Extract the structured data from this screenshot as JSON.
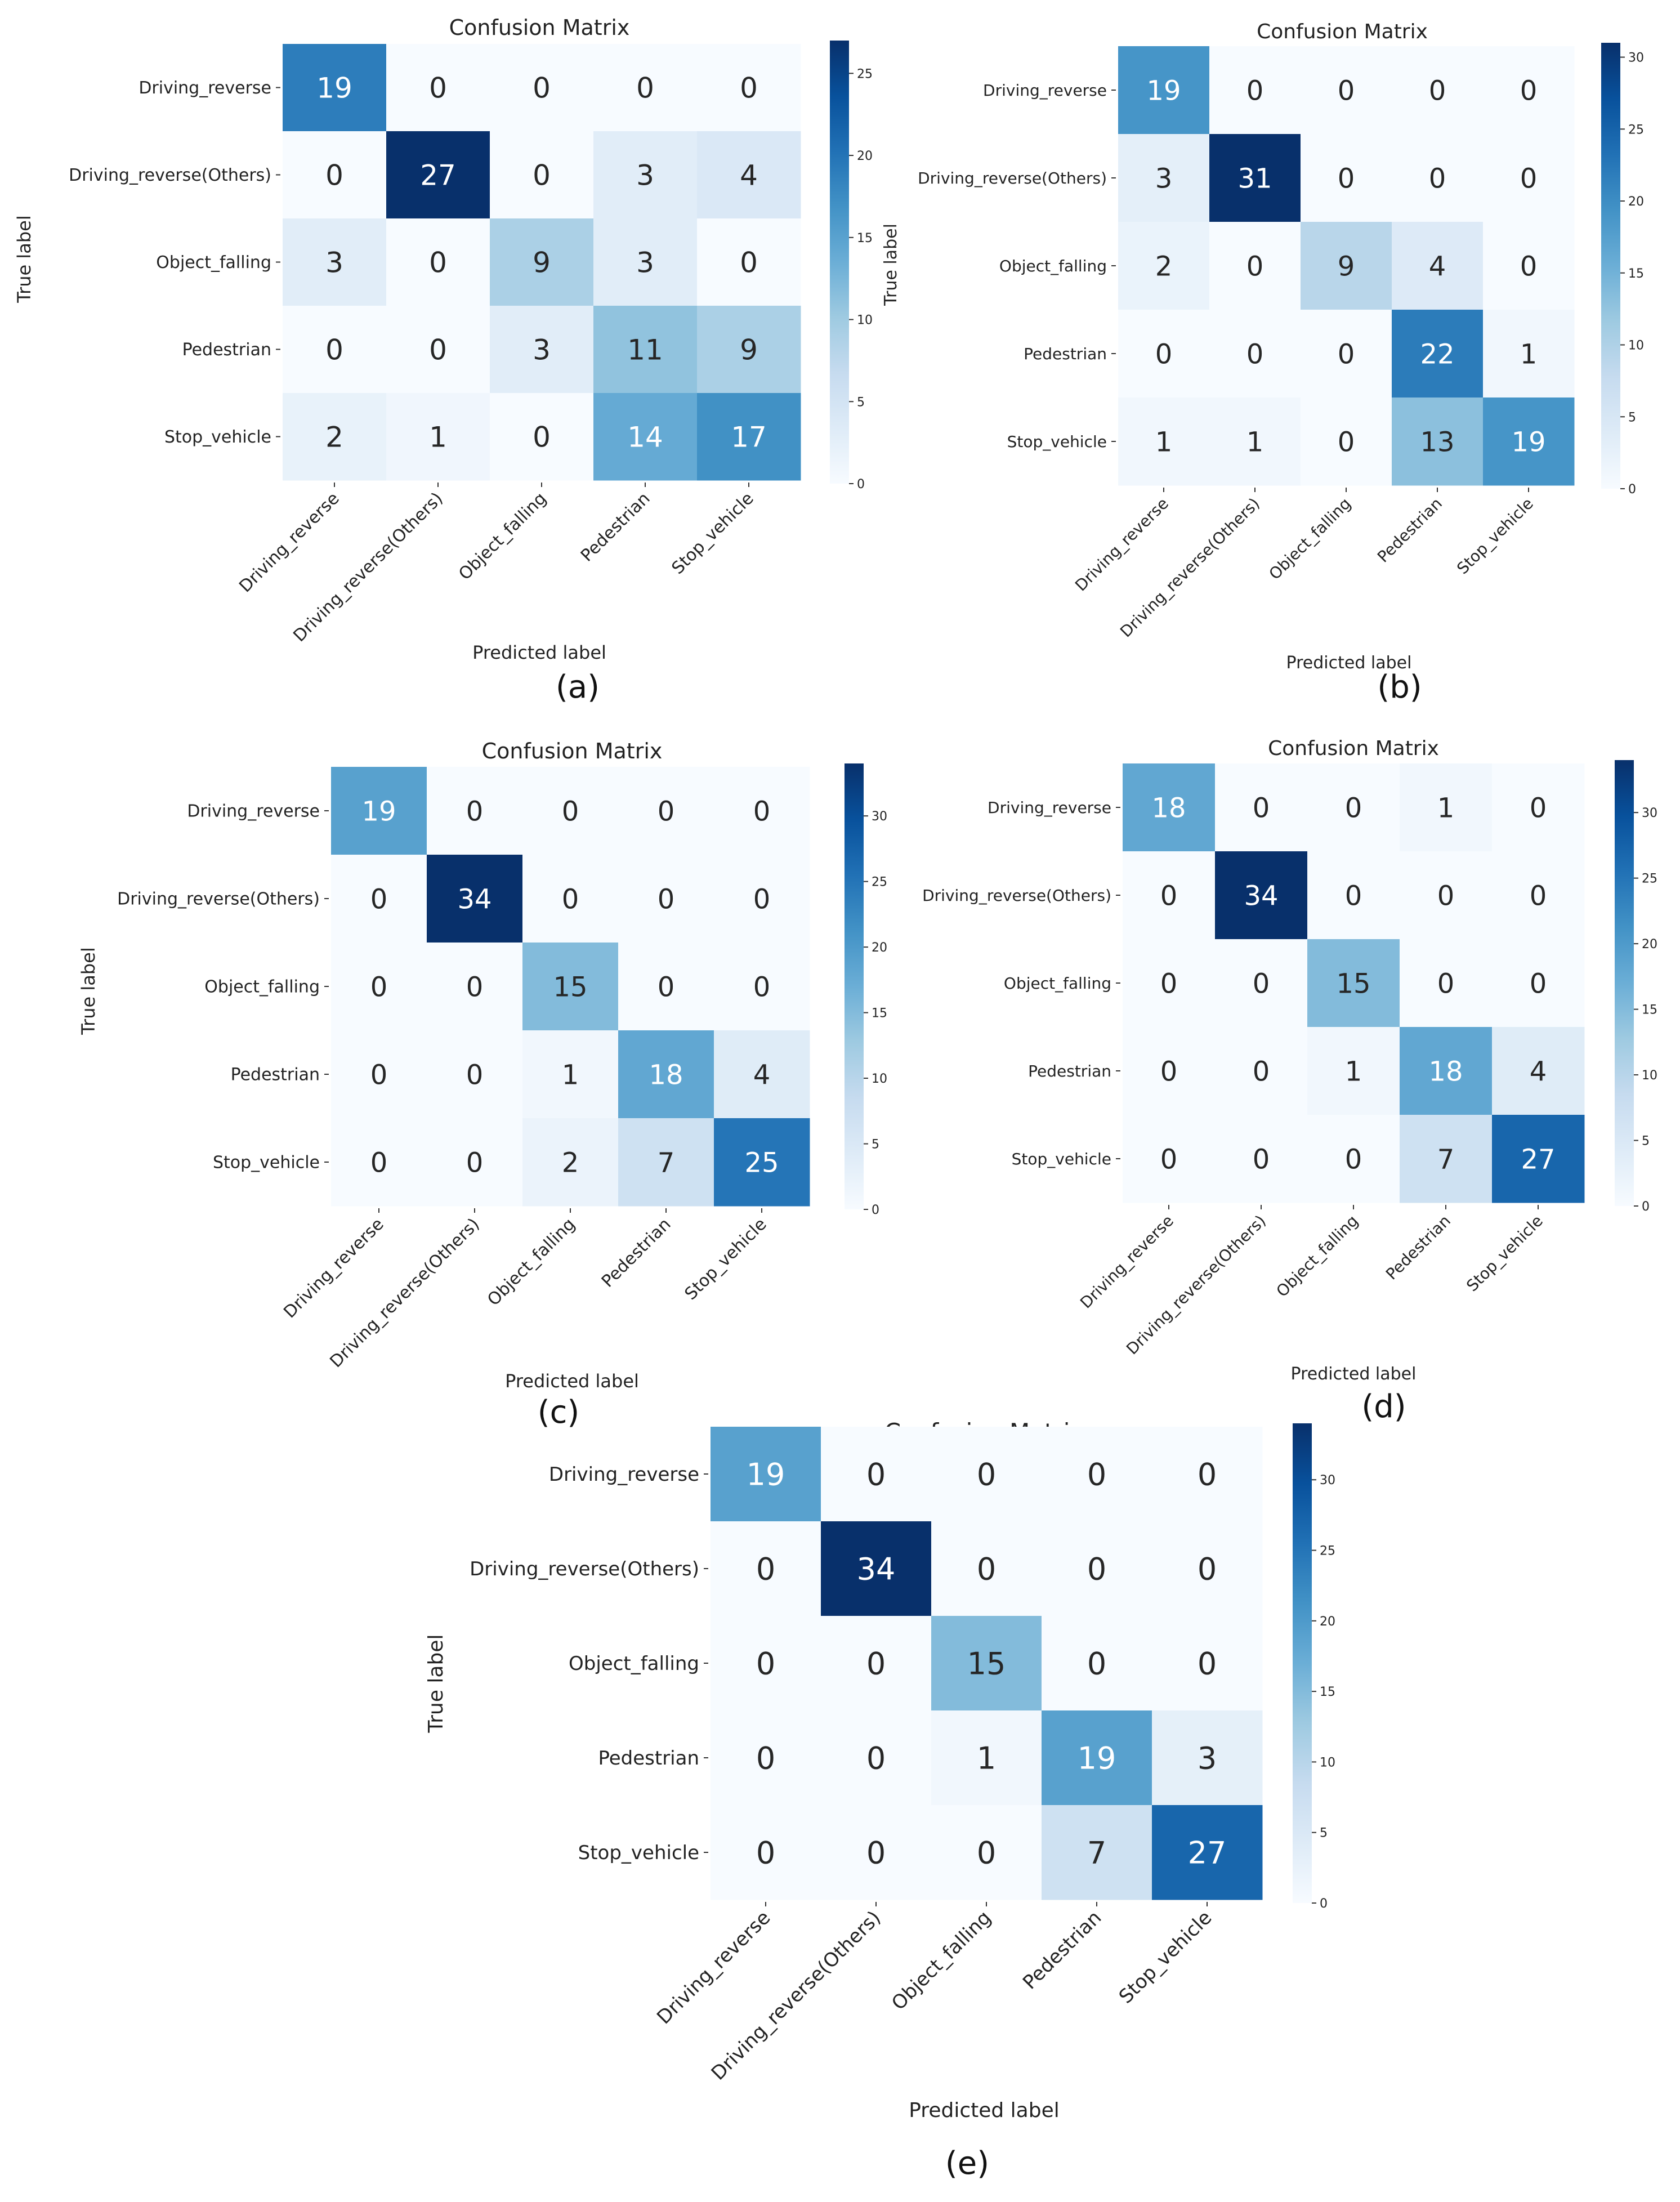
{
  "chart_data": [
    {
      "type": "heatmap",
      "panel": "(a)",
      "title": "Confusion Matrix",
      "xlabel": "Predicted label",
      "ylabel": "True label",
      "colorbar_label": "True label",
      "x_categories": [
        "Driving_reverse",
        "Driving_reverse(Others)",
        "Object_falling",
        "Pedestrian",
        "Stop_vehicle"
      ],
      "y_categories": [
        "Driving_reverse",
        "Driving_reverse(Others)",
        "Object_falling",
        "Pedestrian",
        "Stop_vehicle"
      ],
      "values": [
        [
          19,
          0,
          0,
          0,
          0
        ],
        [
          0,
          27,
          0,
          3,
          4
        ],
        [
          3,
          0,
          9,
          3,
          0
        ],
        [
          0,
          0,
          3,
          11,
          9
        ],
        [
          2,
          1,
          0,
          14,
          17
        ]
      ],
      "colorbar_ticks": [
        0,
        5,
        10,
        15,
        20,
        25
      ],
      "vmax": 27,
      "colormap": "Blues"
    },
    {
      "type": "heatmap",
      "panel": "(b)",
      "title": "Confusion Matrix",
      "xlabel": "Predicted label",
      "ylabel": "",
      "colorbar_label": "",
      "x_categories": [
        "Driving_reverse",
        "Driving_reverse(Others)",
        "Object_falling",
        "Pedestrian",
        "Stop_vehicle"
      ],
      "y_categories": [
        "Driving_reverse",
        "Driving_reverse(Others)",
        "Object_falling",
        "Pedestrian",
        "Stop_vehicle"
      ],
      "values": [
        [
          19,
          0,
          0,
          0,
          0
        ],
        [
          3,
          31,
          0,
          0,
          0
        ],
        [
          2,
          0,
          9,
          4,
          0
        ],
        [
          0,
          0,
          0,
          22,
          1
        ],
        [
          1,
          1,
          0,
          13,
          19
        ]
      ],
      "colorbar_ticks": [
        0,
        5,
        10,
        15,
        20,
        25,
        30
      ],
      "vmax": 31,
      "colormap": "Blues"
    },
    {
      "type": "heatmap",
      "panel": "(c)",
      "title": "Confusion Matrix",
      "xlabel": "Predicted label",
      "ylabel": "True label",
      "colorbar_label": "",
      "x_categories": [
        "Driving_reverse",
        "Driving_reverse(Others)",
        "Object_falling",
        "Pedestrian",
        "Stop_vehicle"
      ],
      "y_categories": [
        "Driving_reverse",
        "Driving_reverse(Others)",
        "Object_falling",
        "Pedestrian",
        "Stop_vehicle"
      ],
      "values": [
        [
          19,
          0,
          0,
          0,
          0
        ],
        [
          0,
          34,
          0,
          0,
          0
        ],
        [
          0,
          0,
          15,
          0,
          0
        ],
        [
          0,
          0,
          1,
          18,
          4
        ],
        [
          0,
          0,
          2,
          7,
          25
        ]
      ],
      "colorbar_ticks": [
        0,
        5,
        10,
        15,
        20,
        25,
        30
      ],
      "vmax": 34,
      "colormap": "Blues"
    },
    {
      "type": "heatmap",
      "panel": "(d)",
      "title": "Confusion Matrix",
      "xlabel": "Predicted label",
      "ylabel": "",
      "colorbar_label": "",
      "x_categories": [
        "Driving_reverse",
        "Driving_reverse(Others)",
        "Object_falling",
        "Pedestrian",
        "Stop_vehicle"
      ],
      "y_categories": [
        "Driving_reverse",
        "Driving_reverse(Others)",
        "Object_falling",
        "Pedestrian",
        "Stop_vehicle"
      ],
      "values": [
        [
          18,
          0,
          0,
          1,
          0
        ],
        [
          0,
          34,
          0,
          0,
          0
        ],
        [
          0,
          0,
          15,
          0,
          0
        ],
        [
          0,
          0,
          1,
          18,
          4
        ],
        [
          0,
          0,
          0,
          7,
          27
        ]
      ],
      "colorbar_ticks": [
        0,
        5,
        10,
        15,
        20,
        25,
        30
      ],
      "vmax": 34,
      "colormap": "Blues"
    },
    {
      "type": "heatmap",
      "panel": "(e)",
      "title": "Confusion Matrix",
      "xlabel": "Predicted label",
      "ylabel": "True label",
      "colorbar_label": "",
      "x_categories": [
        "Driving_reverse",
        "Driving_reverse(Others)",
        "Object_falling",
        "Pedestrian",
        "Stop_vehicle"
      ],
      "y_categories": [
        "Driving_reverse",
        "Driving_reverse(Others)",
        "Object_falling",
        "Pedestrian",
        "Stop_vehicle"
      ],
      "values": [
        [
          19,
          0,
          0,
          0,
          0
        ],
        [
          0,
          34,
          0,
          0,
          0
        ],
        [
          0,
          0,
          15,
          0,
          0
        ],
        [
          0,
          0,
          1,
          19,
          3
        ],
        [
          0,
          0,
          0,
          7,
          27
        ]
      ],
      "colorbar_ticks": [
        0,
        5,
        10,
        15,
        20,
        25,
        30
      ],
      "vmax": 34,
      "colormap": "Blues"
    }
  ],
  "colors": {
    "low": "#f7fbff",
    "high": "#08306b",
    "dark_text": "#262626",
    "light_text": "#ffffff"
  }
}
